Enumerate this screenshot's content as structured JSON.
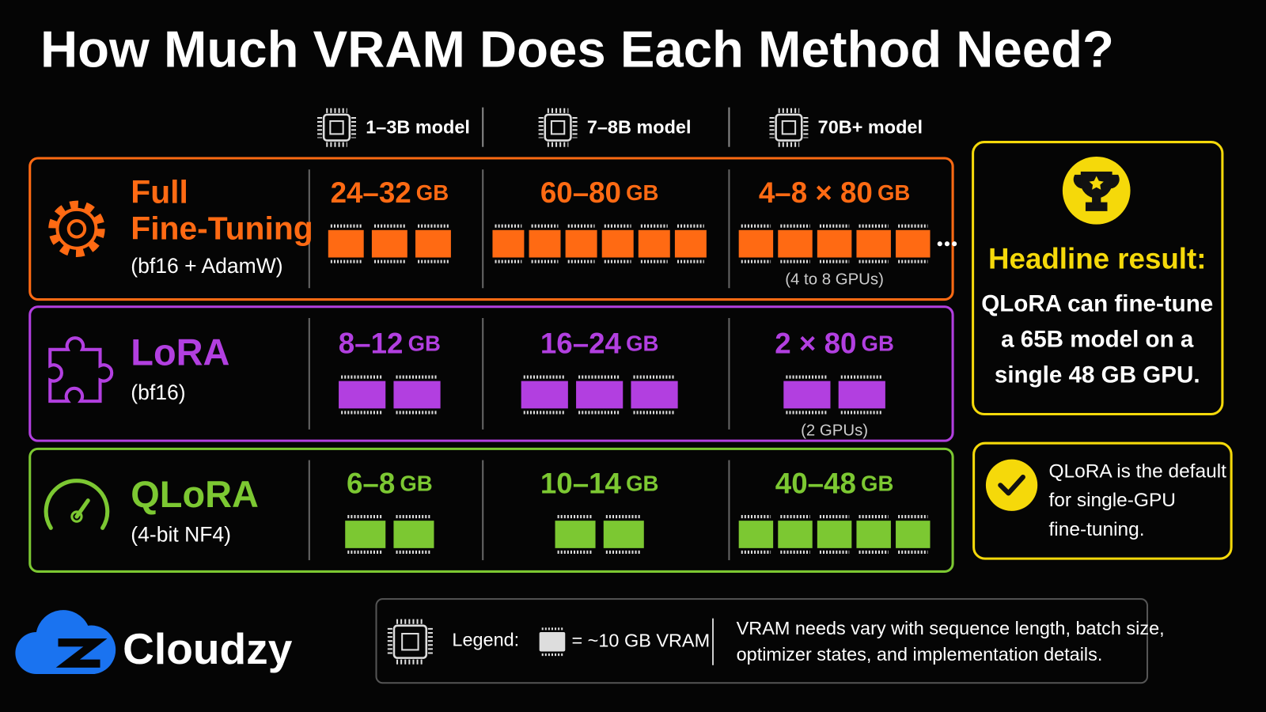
{
  "title": "How Much VRAM Does Each Method Need?",
  "columns": [
    "1–3B model",
    "7–8B model",
    "70B+ model"
  ],
  "rows": [
    {
      "name": [
        "Full",
        "Fine-Tuning"
      ],
      "sub": "(bf16 + AdamW)",
      "color": "#ff6a13",
      "cells": [
        {
          "range": "24–32",
          "unit": "GB",
          "chips": 3
        },
        {
          "range": "60–80",
          "unit": "GB",
          "chips": 6
        },
        {
          "range": "4–8 × 80",
          "unit": "GB",
          "chips": 5,
          "note": "(4 to 8 GPUs)"
        }
      ]
    },
    {
      "name": [
        "LoRA"
      ],
      "sub": "(bf16)",
      "color": "#b23fe0",
      "cells": [
        {
          "range": "8–12",
          "unit": "GB",
          "chips": 2
        },
        {
          "range": "16–24",
          "unit": "GB",
          "chips": 3
        },
        {
          "range": "2 × 80",
          "unit": "GB",
          "chips": 2,
          "note": "(2 GPUs)"
        }
      ]
    },
    {
      "name": [
        "QLoRA"
      ],
      "sub": "(4-bit NF4)",
      "color": "#7cc832",
      "cells": [
        {
          "range": "6–8",
          "unit": "GB",
          "chips": 2
        },
        {
          "range": "10–14",
          "unit": "GB",
          "chips": 2
        },
        {
          "range": "40–48",
          "unit": "GB",
          "chips": 5
        }
      ]
    }
  ],
  "headline": {
    "title": "Headline result:",
    "lines": [
      "QLoRA can fine-tune",
      "a 65B model on a",
      "single 48 GB GPU."
    ]
  },
  "callout": {
    "lines": [
      "QLoRA is the default",
      "for single-GPU",
      "fine-tuning."
    ]
  },
  "brand": "Cloudzy",
  "legend": {
    "label": "Legend:",
    "key": "= ~10 GB VRAM",
    "note": [
      "VRAM needs vary with sequence length, batch size,",
      "optimizer states, and implementation details."
    ]
  }
}
